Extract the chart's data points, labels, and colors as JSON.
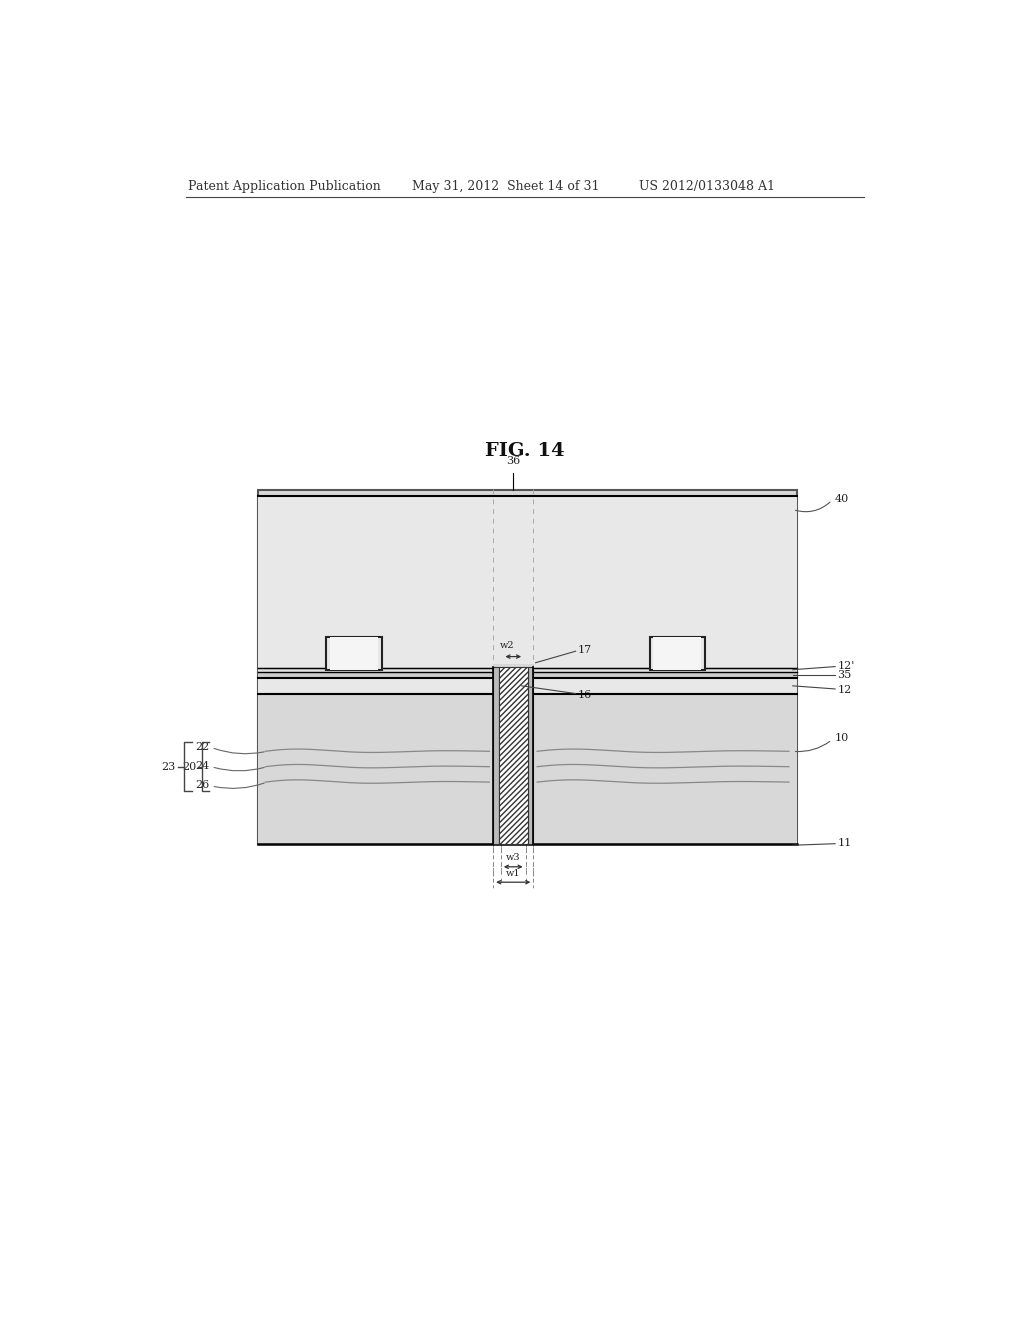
{
  "bg_color": "#ffffff",
  "diagram_bg": "#d8d8d8",
  "header_left": "Patent Application Publication",
  "header_mid": "May 31, 2012  Sheet 14 of 31",
  "header_right": "US 2012/0133048 A1",
  "fig_title": "FIG. 14",
  "label_fs": 8,
  "title_fs": 14
}
